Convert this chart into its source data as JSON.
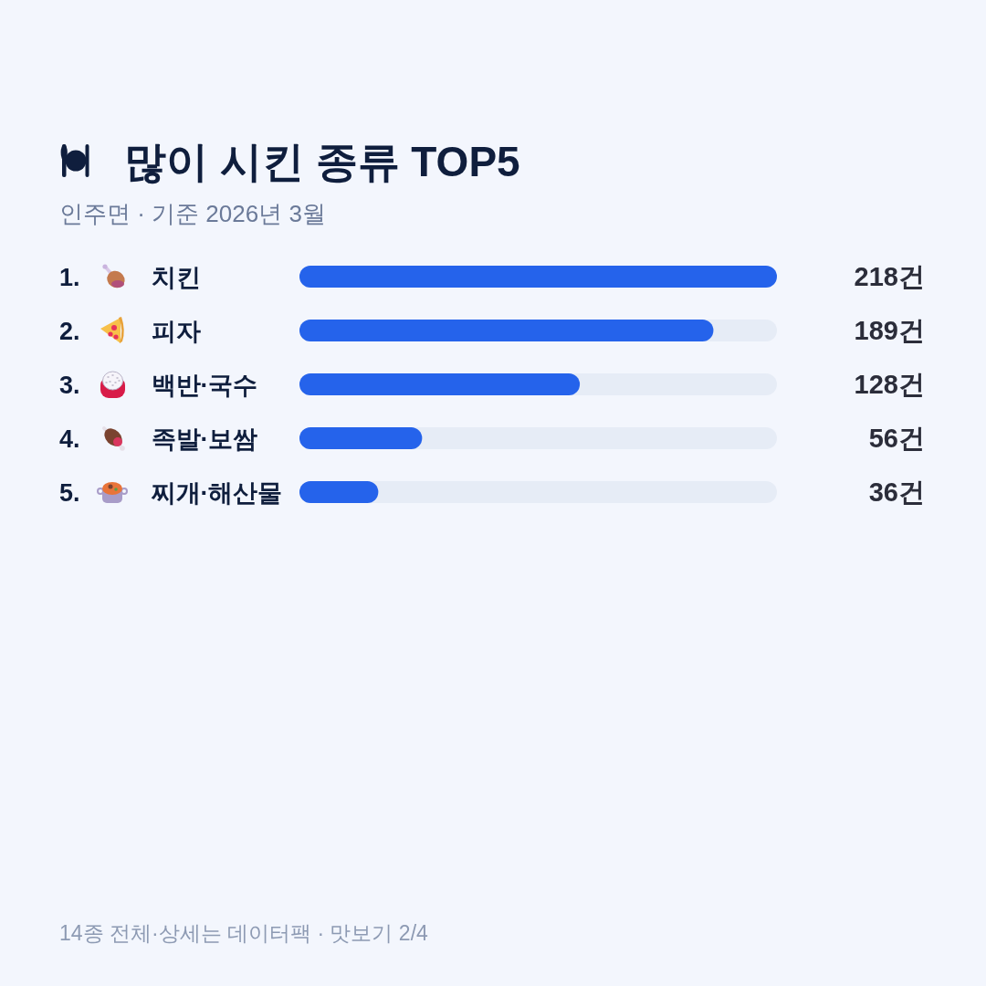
{
  "chart_data": {
    "type": "bar",
    "orientation": "horizontal",
    "title": "많이 시킨 종류 TOP5",
    "subtitle": "인주면 · 기준 2026년 3월",
    "categories": [
      "1. 치킨",
      "2. 피자",
      "3. 백반·국수",
      "4. 족발·보쌈",
      "5. 찌개·해산물"
    ],
    "values": [
      218,
      189,
      128,
      56,
      36
    ],
    "value_labels": [
      "218건",
      "189건",
      "128건",
      "56건",
      "36건"
    ],
    "color": "#2563eb",
    "xlim": [
      0,
      218
    ],
    "annotations": [
      "14종 전체·상세는 데이터팩 · 맛보기 2/4"
    ]
  }
}
